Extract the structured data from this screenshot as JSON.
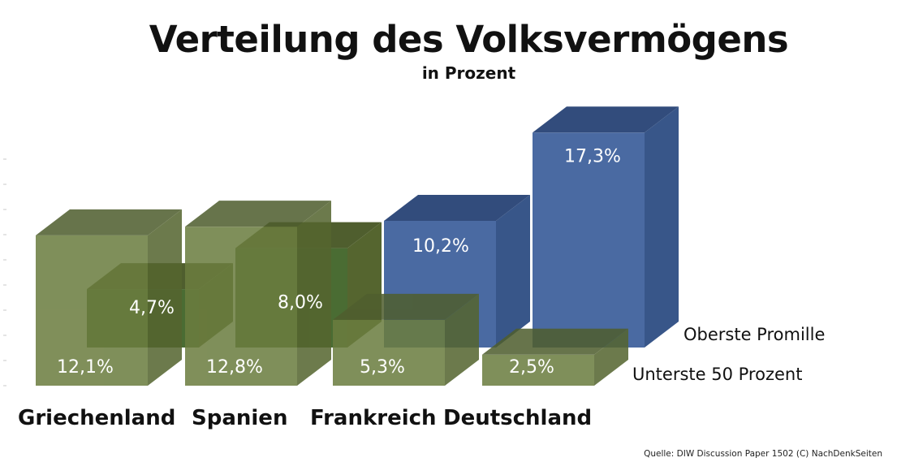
{
  "chart_data": {
    "type": "bar",
    "title": "Verteilung des Volksvermögens",
    "subtitle": "in Prozent",
    "categories": [
      "Griechenland",
      "Spanien",
      "Frankreich",
      "Deutschland"
    ],
    "series": [
      {
        "name": "Unterste 50 Prozent",
        "values": [
          12.1,
          12.8,
          5.3,
          2.5
        ],
        "labels": [
          "12,1%",
          "12,8%",
          "5,3%",
          "2,5%"
        ],
        "color": "#6b7d3f"
      },
      {
        "name": "Oberste Promille",
        "values": [
          4.7,
          8.0,
          10.2,
          17.3
        ],
        "labels": [
          "4,7%",
          "8,0%",
          "10,2%",
          "17,3%"
        ],
        "color": "#4a6aa2"
      }
    ],
    "source": "Quelle: DIW Discussion Paper 1502    (C) NachDenkSeiten"
  },
  "colors": {
    "green_front": "#6b7d3f",
    "green_top": "#4f5e2e",
    "green_side": "#55652f",
    "green_inner": "#4a6c33",
    "blue_front": "#4a6aa2",
    "blue_top": "#324c7c",
    "blue_side": "#385689"
  }
}
